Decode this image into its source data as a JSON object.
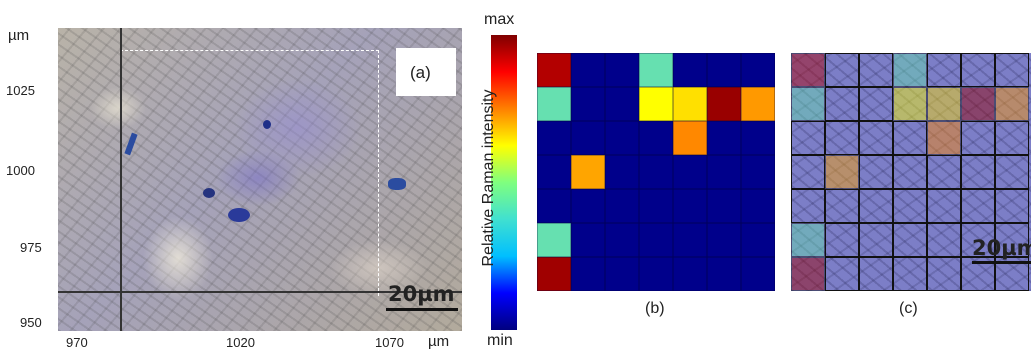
{
  "panel_a": {
    "y_unit": "µm",
    "x_unit": "µm",
    "y_ticks": [
      "1025",
      "1000",
      "975",
      "950"
    ],
    "x_ticks": [
      "970",
      "1020",
      "1070"
    ],
    "label": "(a)",
    "scale_bar": "20µm"
  },
  "colorbar": {
    "top": "max",
    "bottom": "min",
    "title": "Relative Raman intensity",
    "colors": [
      "#00007f",
      "#0000ff",
      "#00bfff",
      "#40e0d0",
      "#7fff7f",
      "#ffff00",
      "#ff8000",
      "#ff0000",
      "#7f0000"
    ]
  },
  "panel_b": {
    "label": "(b)",
    "background": "#00008b",
    "cells": [
      {
        "r": 0,
        "c": 0,
        "color": "#b30000"
      },
      {
        "r": 0,
        "c": 3,
        "color": "#66e0b0"
      },
      {
        "r": 1,
        "c": 0,
        "color": "#66e0b0"
      },
      {
        "r": 1,
        "c": 3,
        "color": "#ffff00"
      },
      {
        "r": 1,
        "c": 4,
        "color": "#ffe000"
      },
      {
        "r": 1,
        "c": 5,
        "color": "#990000"
      },
      {
        "r": 1,
        "c": 6,
        "color": "#ff9900"
      },
      {
        "r": 2,
        "c": 4,
        "color": "#ff8800"
      },
      {
        "r": 3,
        "c": 1,
        "color": "#ffa500"
      },
      {
        "r": 5,
        "c": 0,
        "color": "#66e0b0"
      },
      {
        "r": 6,
        "c": 0,
        "color": "#a00000"
      }
    ]
  },
  "panel_c": {
    "label": "(c)",
    "scale_bar": "20µm"
  }
}
